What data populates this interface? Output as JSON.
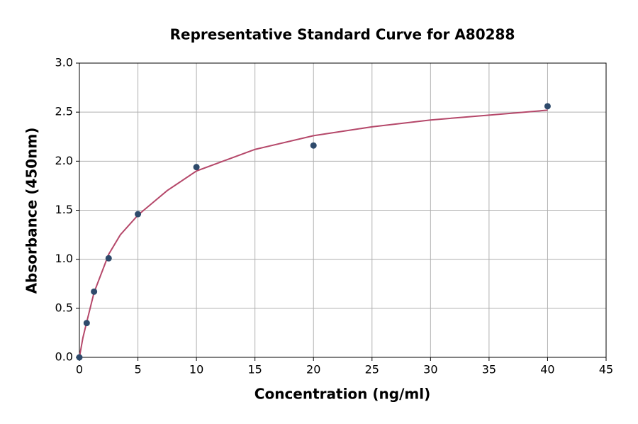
{
  "chart_data": {
    "type": "scatter",
    "title": "Representative Standard Curve for A80288",
    "xlabel": "Concentration (ng/ml)",
    "ylabel": "Absorbance (450nm)",
    "xlim": [
      0,
      45
    ],
    "ylim": [
      0,
      3
    ],
    "xticks": [
      0,
      5,
      10,
      15,
      20,
      25,
      30,
      35,
      40,
      45
    ],
    "yticks": [
      {
        "value": 0,
        "label": "0.0"
      },
      0.5,
      {
        "value": 1,
        "label": "1.0"
      },
      1.5,
      {
        "value": 2,
        "label": "2.0"
      },
      2.5,
      {
        "value": 3,
        "label": "3.0"
      }
    ],
    "grid": true,
    "series": [
      {
        "type": "scatter",
        "color": "#2e4a6b",
        "x": [
          0,
          0.625,
          1.25,
          2.5,
          5,
          10,
          20,
          40
        ],
        "values": [
          0.0,
          0.35,
          0.67,
          1.01,
          1.46,
          1.94,
          2.16,
          2.56
        ]
      },
      {
        "type": "line",
        "color": "#b5486a",
        "x": [
          0,
          0.3,
          0.625,
          1.25,
          2.5,
          3.5,
          5,
          7.5,
          10,
          15,
          20,
          25,
          30,
          35,
          40
        ],
        "values": [
          0.0,
          0.2,
          0.36,
          0.66,
          1.05,
          1.25,
          1.45,
          1.7,
          1.9,
          2.12,
          2.26,
          2.35,
          2.42,
          2.47,
          2.52
        ]
      }
    ]
  }
}
